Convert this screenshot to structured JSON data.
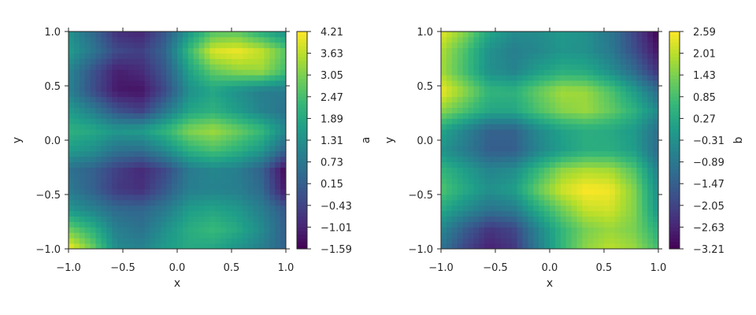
{
  "chart_data": [
    {
      "type": "heatmap",
      "xlabel": "x",
      "ylabel": "y",
      "xlim": [
        -1.0,
        1.0
      ],
      "ylim": [
        -1.0,
        1.0
      ],
      "xticks": [
        "−1.0",
        "−0.5",
        "0.0",
        "0.5",
        "1.0"
      ],
      "yticks": [
        "−1.0",
        "−0.5",
        "0.0",
        "0.5",
        "1.0"
      ],
      "colormap": "viridis",
      "colorbar": {
        "label": "a",
        "range": [
          -1.59,
          4.21
        ],
        "ticks": [
          "4.21",
          "3.63",
          "3.05",
          "2.47",
          "1.89",
          "1.31",
          "0.73",
          "0.15",
          "−0.43",
          "−1.01",
          "−1.59"
        ]
      },
      "grid": false,
      "z": [
        [
          4.2,
          2.9,
          1.2,
          1.0,
          1.6,
          1.9,
          1.8,
          1.4,
          0.9,
          0.2
        ],
        [
          2.9,
          2.1,
          0.9,
          0.6,
          1.3,
          2.0,
          2.3,
          1.9,
          1.2,
          0.1
        ],
        [
          1.5,
          1.0,
          0.4,
          0.3,
          0.8,
          1.6,
          1.8,
          1.5,
          0.9,
          0.0
        ],
        [
          0.8,
          0.2,
          -0.6,
          -0.8,
          0.0,
          0.9,
          1.0,
          0.9,
          0.4,
          -1.3
        ],
        [
          0.6,
          0.2,
          -0.5,
          -0.9,
          -0.3,
          0.8,
          1.1,
          0.9,
          0.2,
          -1.5
        ],
        [
          1.6,
          1.3,
          0.6,
          0.5,
          1.2,
          2.1,
          2.5,
          2.1,
          1.5,
          0.2
        ],
        [
          2.1,
          1.9,
          1.5,
          1.6,
          2.2,
          3.1,
          3.4,
          2.9,
          2.3,
          1.1
        ],
        [
          1.6,
          0.9,
          -0.1,
          -0.5,
          0.7,
          1.8,
          2.1,
          1.6,
          1.0,
          0.6
        ],
        [
          1.0,
          -0.2,
          -1.2,
          -1.3,
          -0.3,
          1.3,
          1.8,
          1.3,
          0.9,
          0.8
        ],
        [
          1.1,
          -0.1,
          -1.1,
          -0.9,
          0.0,
          1.7,
          2.8,
          3.2,
          3.3,
          2.4
        ],
        [
          1.6,
          0.7,
          -0.3,
          -0.5,
          0.3,
          2.3,
          3.9,
          4.1,
          3.7,
          2.7
        ],
        [
          1.4,
          0.4,
          -0.8,
          -1.0,
          0.0,
          1.5,
          2.6,
          2.7,
          2.0,
          1.3
        ]
      ]
    },
    {
      "type": "heatmap",
      "xlabel": "x",
      "ylabel": "y",
      "xlim": [
        -1.0,
        1.0
      ],
      "ylim": [
        -1.0,
        1.0
      ],
      "xticks": [
        "−1.0",
        "−0.5",
        "0.0",
        "0.5",
        "1.0"
      ],
      "yticks": [
        "−1.0",
        "−0.5",
        "0.0",
        "0.5",
        "1.0"
      ],
      "colormap": "viridis",
      "colorbar": {
        "label": "b",
        "range": [
          -3.21,
          2.59
        ],
        "ticks": [
          "2.59",
          "2.01",
          "1.43",
          "0.85",
          "0.27",
          "−0.31",
          "−0.89",
          "−1.47",
          "−2.05",
          "−2.63",
          "−3.21"
        ]
      },
      "grid": false,
      "z": [
        [
          -1.0,
          -2.0,
          -2.7,
          -2.3,
          -0.8,
          0.6,
          1.6,
          2.0,
          1.7,
          0.8
        ],
        [
          -0.5,
          -1.5,
          -2.3,
          -2.0,
          -0.6,
          0.6,
          1.4,
          1.7,
          1.4,
          0.4
        ],
        [
          0.3,
          -0.4,
          -1.0,
          -0.8,
          0.3,
          1.3,
          2.1,
          2.2,
          1.5,
          -0.2
        ],
        [
          1.0,
          0.3,
          -0.3,
          0.0,
          1.2,
          2.2,
          2.6,
          2.5,
          1.5,
          -0.4
        ],
        [
          0.6,
          0.0,
          -0.6,
          -0.4,
          0.6,
          1.6,
          1.9,
          1.8,
          1.0,
          -0.7
        ],
        [
          -0.2,
          -0.8,
          -1.5,
          -1.5,
          -0.6,
          0.0,
          0.4,
          0.4,
          0.0,
          -1.2
        ],
        [
          0.2,
          -0.6,
          -1.4,
          -1.4,
          -0.5,
          0.1,
          0.4,
          0.3,
          -0.1,
          -1.1
        ],
        [
          1.6,
          0.9,
          0.2,
          0.2,
          0.9,
          1.5,
          1.7,
          1.2,
          0.5,
          -0.5
        ],
        [
          2.5,
          1.6,
          0.6,
          0.5,
          1.2,
          1.8,
          1.7,
          1.0,
          0.0,
          -1.2
        ],
        [
          1.8,
          0.8,
          -0.3,
          -0.6,
          0.0,
          0.4,
          0.3,
          -0.3,
          -1.2,
          -2.4
        ],
        [
          1.9,
          0.9,
          -0.3,
          -0.7,
          -0.5,
          -0.2,
          -0.3,
          -0.8,
          -1.8,
          -2.9
        ],
        [
          2.4,
          1.5,
          0.2,
          -0.4,
          -0.4,
          -0.1,
          -0.3,
          -0.9,
          -2.0,
          -3.2
        ]
      ]
    }
  ]
}
